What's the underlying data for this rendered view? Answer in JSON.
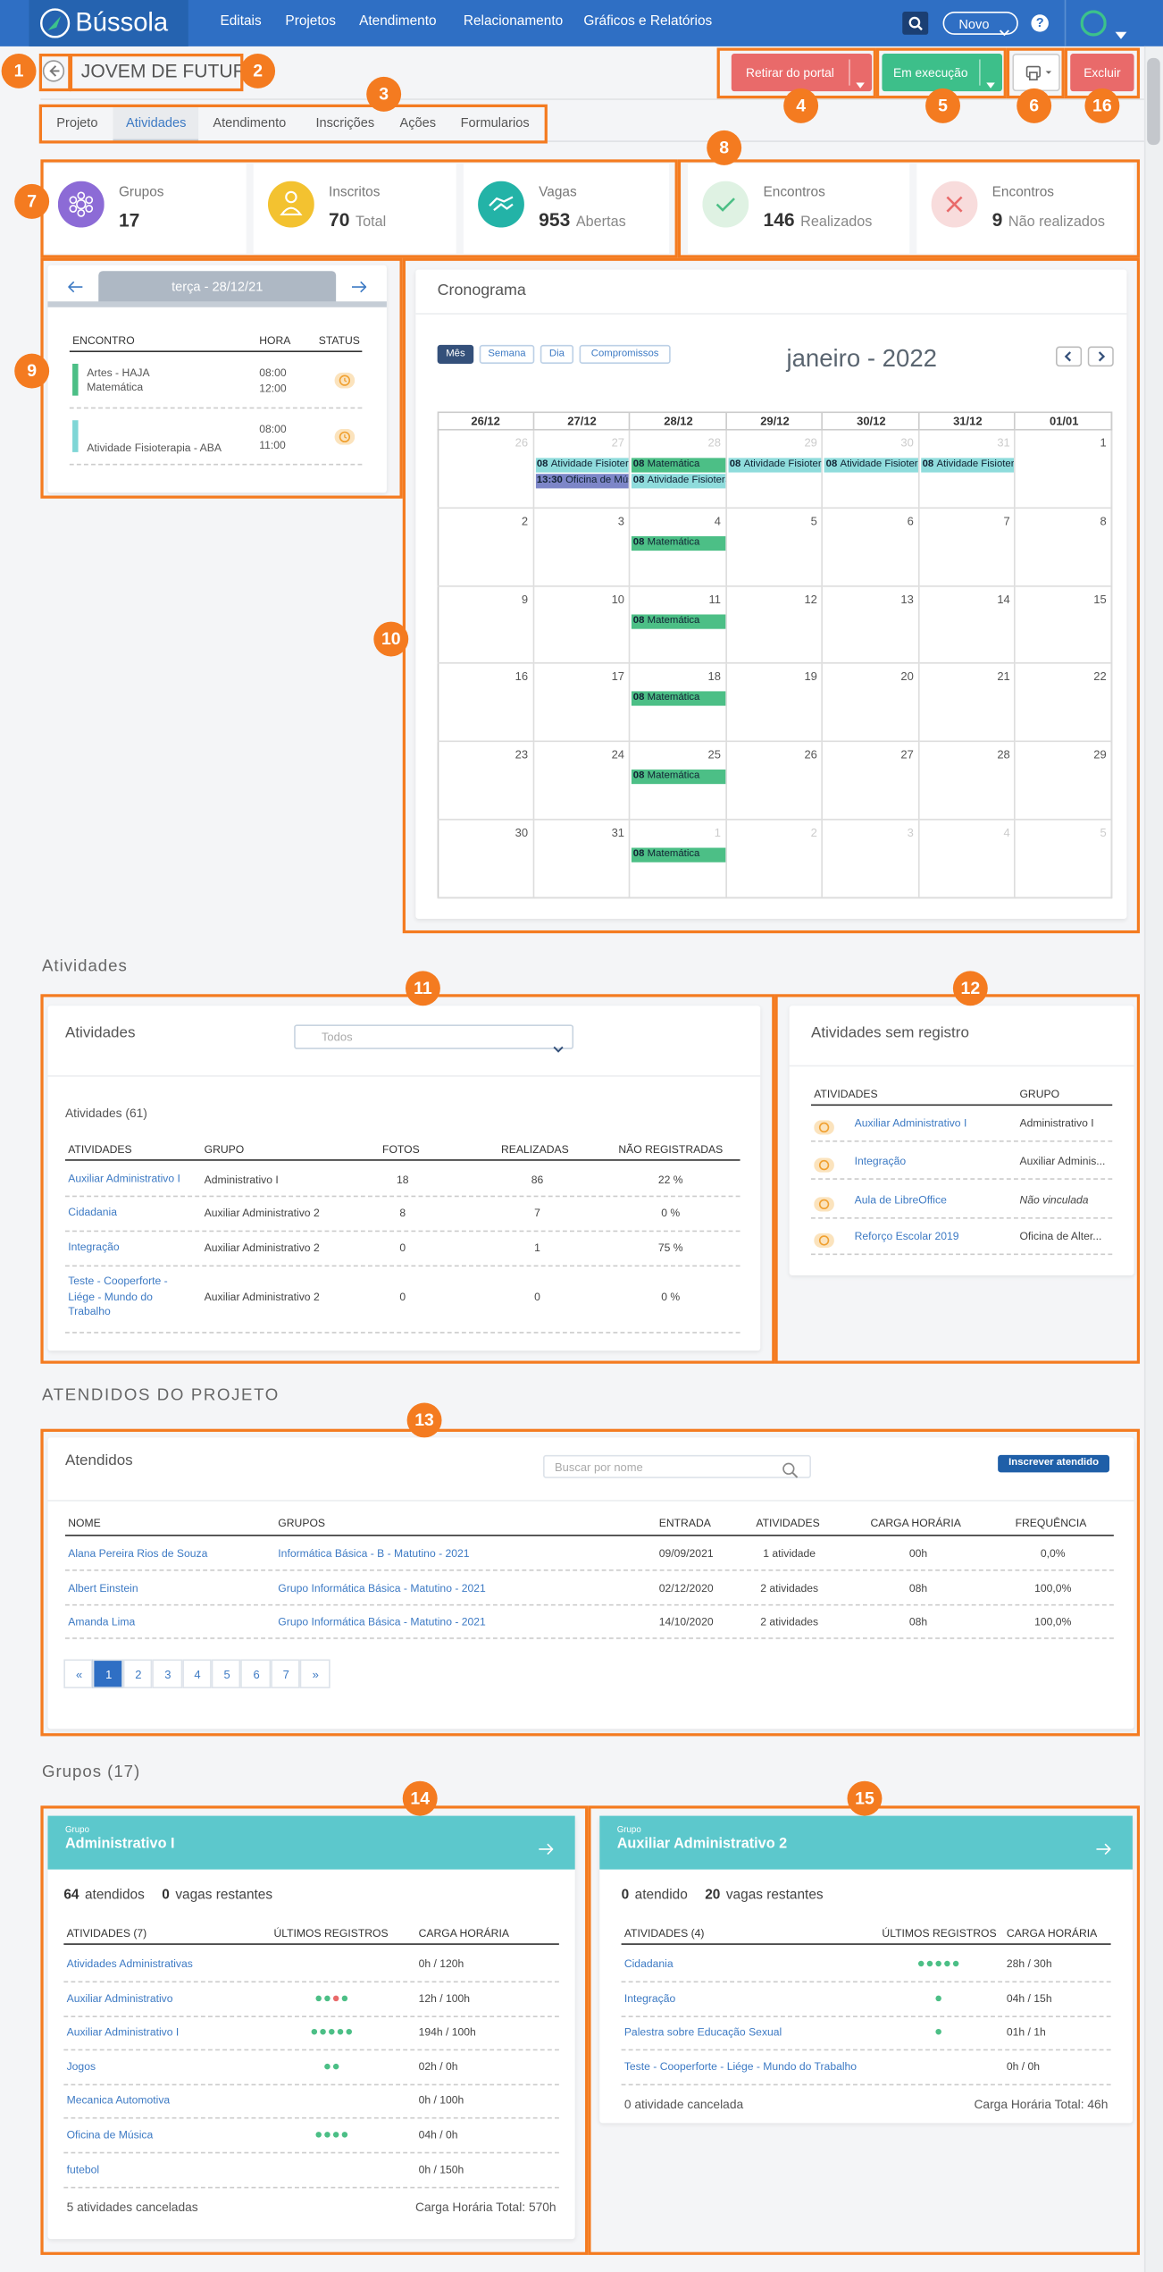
{
  "nav": {
    "brand": "Bússola",
    "menu": [
      "Editais",
      "Projetos",
      "Atendimento",
      "Relacionamento",
      "Gráficos e Relatórios"
    ],
    "new_button": "Novo",
    "help": "?"
  },
  "header": {
    "title": "JOVEM DE FUTURO",
    "buttons": [
      "Retirar do portal",
      "Em execução",
      "Excluir"
    ]
  },
  "tabs": {
    "items": [
      "Projeto",
      "Atividades",
      "Atendimento",
      "Inscrições",
      "Ações",
      "Formularios"
    ],
    "active": 1
  },
  "annotations": [
    "1",
    "2",
    "3",
    "4",
    "5",
    "6",
    "16",
    "7",
    "8",
    "9",
    "10",
    "11",
    "12",
    "13",
    "14",
    "15"
  ],
  "stats": [
    {
      "label": "Grupos",
      "value": 17,
      "color": "#8c6bd6"
    },
    {
      "label": "Inscritos",
      "value": 70,
      "unit": "Total",
      "color": "#f3c230"
    },
    {
      "label": "Vagas",
      "value": 953,
      "unit": "Abertas",
      "color": "#23b3a7"
    },
    {
      "label": "Encontros",
      "value": 146,
      "unit": "Realizados",
      "color": "#dff2e3"
    },
    {
      "label": "Encontros",
      "value": 9,
      "unit": "Não realizados",
      "color": "#f8dcdc"
    }
  ],
  "day_panel": {
    "date": "terça - 28/12/21",
    "columns": [
      "ENCONTRO",
      "HORA",
      "STATUS"
    ],
    "rows": [
      {
        "lines": [
          "Artes - HAJA",
          "Matemática"
        ],
        "start": "08:00",
        "end": "12:00",
        "color": "#4cbf86"
      },
      {
        "lines": [
          "Atividade Fisioterapia - ABA"
        ],
        "start": "08:00",
        "end": "11:00",
        "color": "#7fd6d6"
      }
    ]
  },
  "schedule": {
    "title": "Cronograma",
    "views": [
      "Mês",
      "Semana",
      "Dia",
      "Compromissos"
    ],
    "active_view": 0,
    "month": "janeiro - 2022",
    "columns": [
      "26/12",
      "27/12",
      "28/12",
      "29/12",
      "30/12",
      "31/12",
      "01/01"
    ],
    "weeks": [
      [
        {
          "day": "26",
          "muted": true,
          "events": []
        },
        {
          "day": "27",
          "muted": true,
          "events": [
            {
              "time": "08",
              "title": "Atividade Fisioterapia - ABA",
              "color": "#8fdcdc"
            },
            {
              "time": "13:30",
              "title": "Oficina de Música",
              "color": "#7d86c8"
            }
          ]
        },
        {
          "day": "28",
          "muted": true,
          "events": [
            {
              "time": "08",
              "title": "Matemática",
              "color": "#4cbf86"
            },
            {
              "time": "08",
              "title": "Atividade Fisioterapia - ABA",
              "color": "#8fdcdc"
            }
          ]
        },
        {
          "day": "29",
          "muted": true,
          "events": [
            {
              "time": "08",
              "title": "Atividade Fisioterapia - ABA",
              "color": "#8fdcdc"
            }
          ]
        },
        {
          "day": "30",
          "muted": true,
          "events": [
            {
              "time": "08",
              "title": "Atividade Fisioterapia - ABA",
              "color": "#8fdcdc"
            }
          ]
        },
        {
          "day": "31",
          "muted": true,
          "events": [
            {
              "time": "08",
              "title": "Atividade Fisioterapia - ABA",
              "color": "#8fdcdc"
            }
          ]
        },
        {
          "day": "1",
          "muted": false,
          "events": []
        }
      ],
      [
        {
          "day": "2",
          "muted": false,
          "events": []
        },
        {
          "day": "3",
          "muted": false,
          "events": []
        },
        {
          "day": "4",
          "muted": false,
          "events": [
            {
              "time": "08",
              "title": "Matemática",
              "color": "#4cbf86"
            }
          ]
        },
        {
          "day": "5",
          "muted": false,
          "events": []
        },
        {
          "day": "6",
          "muted": false,
          "events": []
        },
        {
          "day": "7",
          "muted": false,
          "events": []
        },
        {
          "day": "8",
          "muted": false,
          "events": []
        }
      ],
      [
        {
          "day": "9",
          "muted": false,
          "events": []
        },
        {
          "day": "10",
          "muted": false,
          "events": []
        },
        {
          "day": "11",
          "muted": false,
          "events": [
            {
              "time": "08",
              "title": "Matemática",
              "color": "#4cbf86"
            }
          ]
        },
        {
          "day": "12",
          "muted": false,
          "events": []
        },
        {
          "day": "13",
          "muted": false,
          "events": []
        },
        {
          "day": "14",
          "muted": false,
          "events": []
        },
        {
          "day": "15",
          "muted": false,
          "events": []
        }
      ],
      [
        {
          "day": "16",
          "muted": false,
          "events": []
        },
        {
          "day": "17",
          "muted": false,
          "events": []
        },
        {
          "day": "18",
          "muted": false,
          "events": [
            {
              "time": "08",
              "title": "Matemática",
              "color": "#4cbf86"
            }
          ]
        },
        {
          "day": "19",
          "muted": false,
          "events": []
        },
        {
          "day": "20",
          "muted": false,
          "events": []
        },
        {
          "day": "21",
          "muted": false,
          "events": []
        },
        {
          "day": "22",
          "muted": false,
          "events": []
        }
      ],
      [
        {
          "day": "23",
          "muted": false,
          "events": []
        },
        {
          "day": "24",
          "muted": false,
          "events": []
        },
        {
          "day": "25",
          "muted": false,
          "events": [
            {
              "time": "08",
              "title": "Matemática",
              "color": "#4cbf86"
            }
          ]
        },
        {
          "day": "26",
          "muted": false,
          "events": []
        },
        {
          "day": "27",
          "muted": false,
          "events": []
        },
        {
          "day": "28",
          "muted": false,
          "events": []
        },
        {
          "day": "29",
          "muted": false,
          "events": []
        }
      ],
      [
        {
          "day": "30",
          "muted": false,
          "events": []
        },
        {
          "day": "31",
          "muted": false,
          "events": []
        },
        {
          "day": "1",
          "muted": true,
          "events": [
            {
              "time": "08",
              "title": "Matemática",
              "color": "#4cbf86"
            }
          ]
        },
        {
          "day": "2",
          "muted": true,
          "events": []
        },
        {
          "day": "3",
          "muted": true,
          "events": []
        },
        {
          "day": "4",
          "muted": true,
          "events": []
        },
        {
          "day": "5",
          "muted": true,
          "events": []
        }
      ]
    ]
  },
  "activities_section": {
    "heading": "Atividades",
    "card_title": "Atividades",
    "filter": "Todos",
    "count": "Atividades (61)",
    "columns": [
      "ATIVIDADES",
      "GRUPO",
      "FOTOS",
      "REALIZADAS",
      "NÃO REGISTRADAS"
    ],
    "rows": [
      [
        "Auxiliar Administrativo I",
        "Administrativo I",
        "18",
        "86",
        "22 %"
      ],
      [
        "Cidadania",
        "Auxiliar Administrativo 2",
        "8",
        "7",
        "0 %"
      ],
      [
        "Integração",
        "Auxiliar Administrativo 2",
        "0",
        "1",
        "75 %"
      ],
      [
        "Teste - Cooperforte - Liége - Mundo do Trabalho",
        "Auxiliar Administrativo 2",
        "0",
        "0",
        "0 %"
      ]
    ]
  },
  "unregistered": {
    "title": "Atividades sem registro",
    "columns": [
      "ATIVIDADES",
      "GRUPO"
    ],
    "rows": [
      [
        "Auxiliar Administrativo I",
        "Administrativo I"
      ],
      [
        "Integração",
        "Auxiliar Adminis..."
      ],
      [
        "Aula de LibreOffice",
        "Não vinculada"
      ],
      [
        "Reforço Escolar 2019",
        "Oficina de Alter..."
      ]
    ]
  },
  "attendees": {
    "heading": "ATENDIDOS DO PROJETO",
    "card_title": "Atendidos",
    "search_placeholder": "Buscar por nome",
    "button": "Inscrever atendido",
    "columns": [
      "NOME",
      "GRUPOS",
      "ENTRADA",
      "ATIVIDADES",
      "CARGA HORÁRIA",
      "FREQUÊNCIA"
    ],
    "rows": [
      [
        "Alana Pereira Rios de Souza",
        "Informática Básica - B - Matutino - 2021",
        "09/09/2021",
        "1 atividade",
        "00h",
        "0,0%"
      ],
      [
        "Albert Einstein",
        "Grupo Informática Básica - Matutino - 2021",
        "02/12/2020",
        "2 atividades",
        "08h",
        "100,0%"
      ],
      [
        "Amanda Lima",
        "Grupo Informática Básica - Matutino - 2021",
        "14/10/2020",
        "2 atividades",
        "08h",
        "100,0%"
      ]
    ],
    "pagination": [
      "«",
      "1",
      "2",
      "3",
      "4",
      "5",
      "6",
      "7",
      "»"
    ],
    "active_page": 1
  },
  "groups": {
    "heading": "Grupos (17)",
    "cards": [
      {
        "kicker": "Grupo",
        "name": "Administrativo I",
        "summary": [
          {
            "value": 64,
            "label": "atendidos"
          },
          {
            "value": 0,
            "label": "vagas restantes"
          }
        ],
        "columns": [
          "ATIVIDADES (7)",
          "ÚLTIMOS REGISTROS",
          "CARGA HORÁRIA"
        ],
        "rows": [
          {
            "name": "Atividades Administrativas",
            "dots": [],
            "hours": "0h / 120h"
          },
          {
            "name": "Auxiliar Administrativo",
            "dots": [
              "#4cbf86",
              "#4cbf86",
              "#e96a6a",
              "#4cbf86"
            ],
            "hours": "12h / 100h"
          },
          {
            "name": "Auxiliar Administrativo I",
            "dots": [
              "#4cbf86",
              "#4cbf86",
              "#4cbf86",
              "#4cbf86",
              "#4cbf86"
            ],
            "hours": "194h / 100h"
          },
          {
            "name": "Jogos",
            "dots": [
              "#4cbf86",
              "#4cbf86"
            ],
            "hours": "02h / 0h"
          },
          {
            "name": "Mecanica Automotiva",
            "dots": [],
            "hours": "0h / 100h"
          },
          {
            "name": "Oficina de Música",
            "dots": [
              "#4cbf86",
              "#4cbf86",
              "#4cbf86",
              "#4cbf86"
            ],
            "hours": "04h / 0h"
          },
          {
            "name": "futebol",
            "dots": [],
            "hours": "0h / 150h"
          }
        ],
        "footer": [
          "5 atividades canceladas",
          "Carga Horária Total: 570h"
        ]
      },
      {
        "kicker": "Grupo",
        "name": "Auxiliar Administrativo 2",
        "summary": [
          {
            "value": 0,
            "label": "atendido"
          },
          {
            "value": 20,
            "label": "vagas restantes"
          }
        ],
        "columns": [
          "ATIVIDADES (4)",
          "ÚLTIMOS REGISTROS",
          "CARGA HORÁRIA"
        ],
        "rows": [
          {
            "name": "Cidadania",
            "dots": [
              "#4cbf86",
              "#4cbf86",
              "#4cbf86",
              "#4cbf86",
              "#4cbf86"
            ],
            "hours": "28h / 30h"
          },
          {
            "name": "Integração",
            "dots": [
              "#4cbf86"
            ],
            "hours": "04h / 15h"
          },
          {
            "name": "Palestra sobre Educação Sexual",
            "dots": [
              "#4cbf86"
            ],
            "hours": "01h / 1h"
          },
          {
            "name": "Teste - Cooperforte - Liége - Mundo do Trabalho",
            "dots": [],
            "hours": "0h / 0h"
          }
        ],
        "footer": [
          "0 atividade cancelada",
          "Carga Horária Total: 46h"
        ]
      }
    ]
  }
}
